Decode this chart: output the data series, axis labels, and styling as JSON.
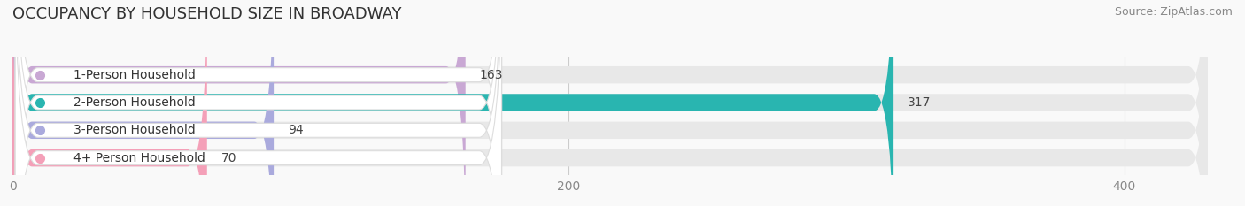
{
  "title": "OCCUPANCY BY HOUSEHOLD SIZE IN BROADWAY",
  "source": "Source: ZipAtlas.com",
  "categories": [
    "1-Person Household",
    "2-Person Household",
    "3-Person Household",
    "4+ Person Household"
  ],
  "values": [
    163,
    317,
    94,
    70
  ],
  "bar_colors": [
    "#c9a8d4",
    "#29b5b0",
    "#aaaadd",
    "#f4a0b8"
  ],
  "bar_bg_color": "#e8e8e8",
  "xlim": [
    0,
    430
  ],
  "xticks": [
    0,
    200,
    400
  ],
  "title_fontsize": 13,
  "source_fontsize": 9,
  "tick_fontsize": 10,
  "bar_label_fontsize": 10,
  "category_fontsize": 10,
  "bar_height": 0.62,
  "background_color": "#f9f9f9",
  "label_box_color": "#ffffff",
  "label_text_color": "#444444"
}
